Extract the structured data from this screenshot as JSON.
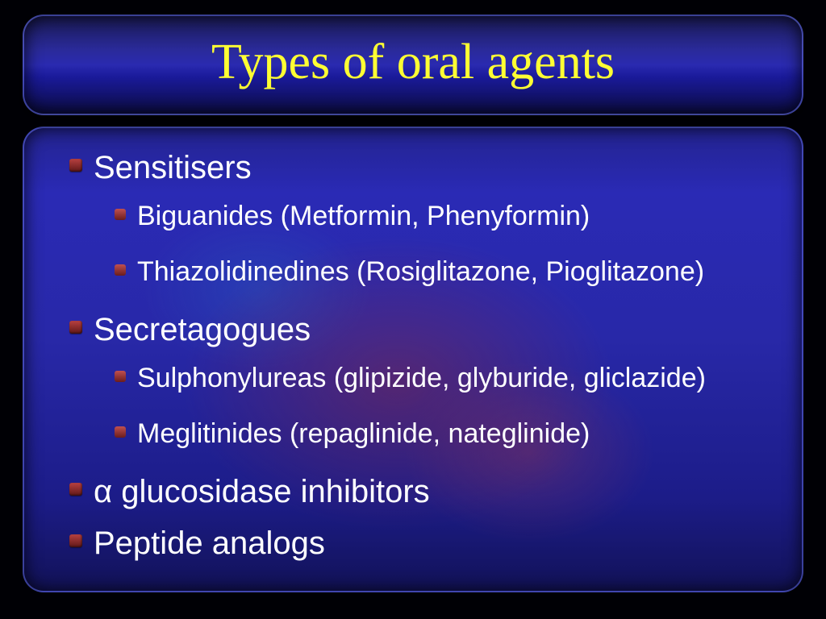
{
  "slide": {
    "title": "Types of oral agents",
    "title_color": "#ffff33",
    "title_font": "Times New Roman",
    "title_fontsize": 62,
    "body_text_color": "#ffffff",
    "body_font": "Arial",
    "lvl1_fontsize": 40,
    "lvl2_fontsize": 34,
    "bullet_color_top": "#b84040",
    "bullet_color_bottom": "#601818",
    "background_gradient": [
      "#232390",
      "#2a2ab5",
      "#2828a8",
      "#1c1c88",
      "#121258"
    ],
    "items": [
      {
        "label": "Sensitisers",
        "children": [
          {
            "label": "Biguanides (Metformin, Phenyformin)"
          },
          {
            "label": "Thiazolidinedines (Rosiglitazone, Pioglitazone)"
          }
        ]
      },
      {
        "label": "Secretagogues",
        "children": [
          {
            "label": "Sulphonylureas (glipizide, glyburide, gliclazide)"
          },
          {
            "label": "Meglitinides (repaglinide, nateglinide)"
          }
        ]
      },
      {
        "label": "α glucosidase inhibitors",
        "children": []
      },
      {
        "label": "Peptide analogs",
        "children": []
      }
    ]
  }
}
